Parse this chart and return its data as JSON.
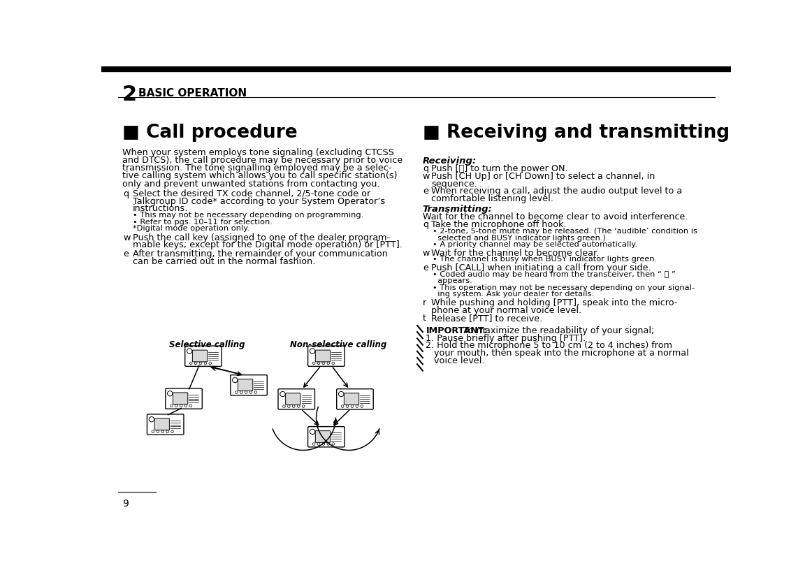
{
  "bg_color": "#ffffff",
  "page_number": "9",
  "chapter_number": "2",
  "chapter_title": "BASIC OPERATION",
  "left_section_title": "■ Call procedure",
  "right_section_title": "■ Receiving and transmitting",
  "left_intro": "When your system employs tone signaling (excluding CTCSS\nand DTCS), the call procedure may be necessary prior to voice\ntransmission. The tone signalling employed may be a selec-\ntive calling system which allows you to call specific station(s)\nonly and prevent unwanted stations from contacting you.",
  "left_items": [
    {
      "bullet": "q",
      "text": "Select the desired TX code channel, 2/5-tone code or\nTalkgroup ID code* according to your System Operator’s\ninstructions.\n• This may not be necessary depending on programming.\n• Refer to pgs. 10–11 for selection.\n*Digital mode operation only."
    },
    {
      "bullet": "w",
      "text": "Push the call key (assigned to one of the dealer program-\nmable keys; except for the Digital mode operation) or [PTT]."
    },
    {
      "bullet": "e",
      "text": "After transmitting, the remainder of your communication\ncan be carried out in the normal fashion."
    }
  ],
  "diagram_label_left": "Selective calling",
  "diagram_label_right": "Non-selective calling",
  "right_receiving_title": "Receiving:",
  "right_receiving_items": [
    {
      "bullet": "q",
      "text": "Push [ⓘ] to turn the power ON."
    },
    {
      "bullet": "w",
      "text": "Push [CH Up] or [CH Down] to select a channel, in\nsequence."
    },
    {
      "bullet": "e",
      "text": "When receiving a call, adjust the audio output level to a\ncomfortable listening level."
    }
  ],
  "right_transmitting_title": "Transmitting:",
  "right_transmitting_intro": "Wait for the channel to become clear to avoid interference.",
  "right_transmitting_items": [
    {
      "bullet": "q",
      "text": "Take the microphone off hook.",
      "subs": [
        "• 2-tone, 5-tone mute may be released. (The ‘audible’ condition is",
        "  selected and BUSY indicator lights green.)",
        "• A priority channel may be selected automatically."
      ]
    },
    {
      "bullet": "w",
      "text": "Wait for the channel to become clear.",
      "subs": [
        "• The channel is busy when BUSY indicator lights green."
      ]
    },
    {
      "bullet": "e",
      "text": "Push [CALL] when initiating a call from your side.",
      "subs": [
        "• Coded audio may be heard from the transceiver, then “ 🔊 ”",
        "  appears.",
        "• This operation may not be necessary depending on your signal-",
        "  ing system. Ask your dealer for details."
      ]
    },
    {
      "bullet": "r",
      "text": "While pushing and holding [PTT], speak into the micro-\nphone at your normal voice level.",
      "subs": []
    },
    {
      "bullet": "t",
      "text": "Release [PTT] to receive.",
      "subs": []
    }
  ],
  "important_bold": "IMPORTANT:",
  "important_rest": " To maximize the readability of your signal;",
  "important_lines": [
    "1. Pause briefly after pushing [PTT].",
    "2. Hold the microphone 5 to 10 cm (2 to 4 inches) from",
    "   your mouth, then speak into the microphone at a normal",
    "   voice level."
  ]
}
